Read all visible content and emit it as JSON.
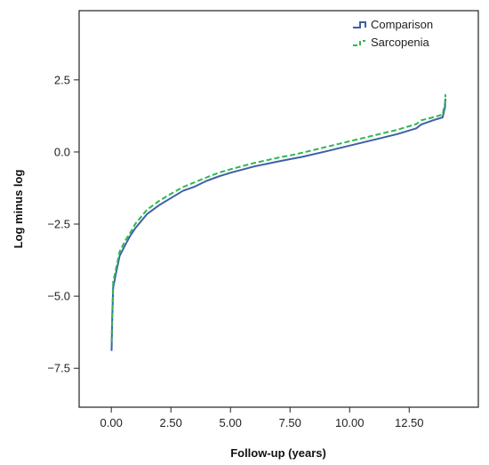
{
  "chart_data": {
    "type": "line",
    "xlabel": "Follow-up (years)",
    "ylabel": "Log minus log",
    "xlim": [
      -1.35,
      15.4
    ],
    "ylim": [
      -8.85,
      4.9
    ],
    "x_ticks": [
      0,
      2.5,
      5,
      7.5,
      10,
      12.5
    ],
    "x_tick_labels": [
      "0.00",
      "2.50",
      "5.00",
      "7.50",
      "10.00",
      "12.50"
    ],
    "y_ticks": [
      2.5,
      0,
      -2.5,
      -5,
      -7.5
    ],
    "y_tick_labels": [
      "2.5",
      "0.0",
      "−2.5",
      "−5.0",
      "−7.5"
    ],
    "grid": false,
    "legend_position": "top-right",
    "series": [
      {
        "name": "Comparison",
        "color": "#3f5fa8",
        "style": "solid",
        "points": [
          [
            0.01,
            -6.9
          ],
          [
            0.04,
            -5.7
          ],
          [
            0.08,
            -4.7
          ],
          [
            0.2,
            -4.2
          ],
          [
            0.35,
            -3.6
          ],
          [
            0.6,
            -3.2
          ],
          [
            0.8,
            -2.9
          ],
          [
            1.0,
            -2.65
          ],
          [
            1.5,
            -2.15
          ],
          [
            2.0,
            -1.85
          ],
          [
            2.5,
            -1.6
          ],
          [
            3.0,
            -1.35
          ],
          [
            3.5,
            -1.2
          ],
          [
            4.0,
            -1.0
          ],
          [
            4.5,
            -0.85
          ],
          [
            5.0,
            -0.72
          ],
          [
            6.0,
            -0.5
          ],
          [
            7.0,
            -0.33
          ],
          [
            7.5,
            -0.25
          ],
          [
            8.0,
            -0.17
          ],
          [
            9.0,
            0.02
          ],
          [
            10.0,
            0.22
          ],
          [
            11.0,
            0.42
          ],
          [
            12.0,
            0.62
          ],
          [
            12.8,
            0.82
          ],
          [
            13.0,
            0.95
          ],
          [
            13.5,
            1.1
          ],
          [
            13.9,
            1.2
          ],
          [
            14.0,
            1.55
          ],
          [
            14.02,
            1.85
          ]
        ]
      },
      {
        "name": "Sarcopenia",
        "color": "#2db84f",
        "style": "dashed",
        "points": [
          [
            0.01,
            -6.6
          ],
          [
            0.04,
            -5.5
          ],
          [
            0.08,
            -4.5
          ],
          [
            0.2,
            -4.05
          ],
          [
            0.35,
            -3.45
          ],
          [
            0.6,
            -3.05
          ],
          [
            0.8,
            -2.8
          ],
          [
            1.0,
            -2.5
          ],
          [
            1.5,
            -2.0
          ],
          [
            2.0,
            -1.7
          ],
          [
            2.5,
            -1.45
          ],
          [
            3.0,
            -1.22
          ],
          [
            3.5,
            -1.05
          ],
          [
            4.0,
            -0.88
          ],
          [
            4.5,
            -0.72
          ],
          [
            5.0,
            -0.6
          ],
          [
            6.0,
            -0.38
          ],
          [
            7.0,
            -0.2
          ],
          [
            7.5,
            -0.12
          ],
          [
            8.0,
            -0.03
          ],
          [
            9.0,
            0.17
          ],
          [
            10.0,
            0.37
          ],
          [
            11.0,
            0.57
          ],
          [
            12.0,
            0.77
          ],
          [
            12.8,
            0.97
          ],
          [
            13.0,
            1.1
          ],
          [
            13.5,
            1.2
          ],
          [
            13.9,
            1.3
          ],
          [
            14.0,
            1.7
          ],
          [
            14.02,
            2.0
          ]
        ]
      }
    ]
  }
}
